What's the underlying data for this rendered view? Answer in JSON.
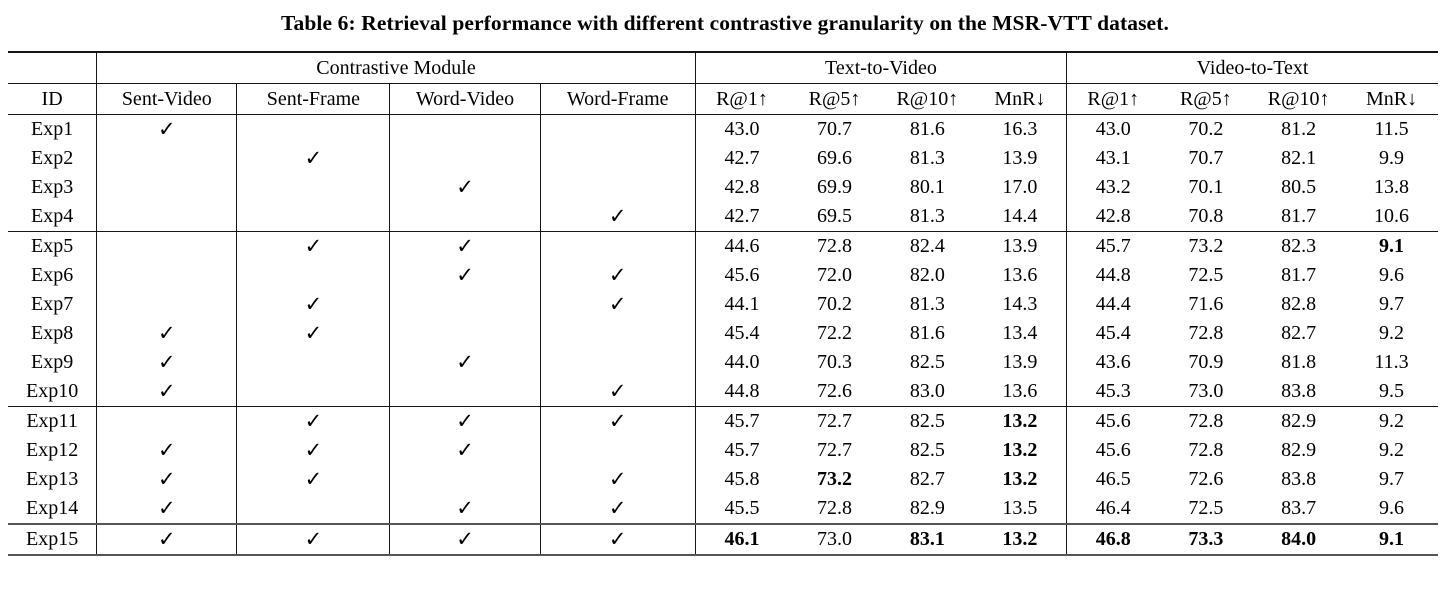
{
  "page": {
    "caption": "Table 6: Retrieval performance with different contrastive granularity on the MSR-VTT dataset."
  },
  "table": {
    "group_headers": [
      {
        "label": "",
        "span": 1
      },
      {
        "label": "Contrastive Module",
        "span": 4
      },
      {
        "label": "Text-to-Video",
        "span": 4
      },
      {
        "label": "Video-to-Text",
        "span": 4
      }
    ],
    "column_headers": [
      "ID",
      "Sent-Video",
      "Sent-Frame",
      "Word-Video",
      "Word-Frame",
      "R@1↑",
      "R@5↑",
      "R@10↑",
      "MnR↓",
      "R@1↑",
      "R@5↑",
      "R@10↑",
      "MnR↓"
    ],
    "checkmark_glyph": "✓",
    "rows": [
      {
        "id": "Exp1",
        "checks": [
          1,
          0,
          0,
          0
        ],
        "values": [
          "43.0",
          "70.7",
          "81.6",
          "16.3",
          "43.0",
          "70.2",
          "81.2",
          "11.5"
        ],
        "bold": [
          0,
          0,
          0,
          0,
          0,
          0,
          0,
          0
        ],
        "rule_above": null
      },
      {
        "id": "Exp2",
        "checks": [
          0,
          1,
          0,
          0
        ],
        "values": [
          "42.7",
          "69.6",
          "81.3",
          "13.9",
          "43.1",
          "70.7",
          "82.1",
          "9.9"
        ],
        "bold": [
          0,
          0,
          0,
          0,
          0,
          0,
          0,
          0
        ],
        "rule_above": null
      },
      {
        "id": "Exp3",
        "checks": [
          0,
          0,
          1,
          0
        ],
        "values": [
          "42.8",
          "69.9",
          "80.1",
          "17.0",
          "43.2",
          "70.1",
          "80.5",
          "13.8"
        ],
        "bold": [
          0,
          0,
          0,
          0,
          0,
          0,
          0,
          0
        ],
        "rule_above": null
      },
      {
        "id": "Exp4",
        "checks": [
          0,
          0,
          0,
          1
        ],
        "values": [
          "42.7",
          "69.5",
          "81.3",
          "14.4",
          "42.8",
          "70.8",
          "81.7",
          "10.6"
        ],
        "bold": [
          0,
          0,
          0,
          0,
          0,
          0,
          0,
          0
        ],
        "rule_above": null
      },
      {
        "id": "Exp5",
        "checks": [
          0,
          1,
          1,
          0
        ],
        "values": [
          "44.6",
          "72.8",
          "82.4",
          "13.9",
          "45.7",
          "73.2",
          "82.3",
          "9.1"
        ],
        "bold": [
          0,
          0,
          0,
          0,
          0,
          0,
          0,
          1
        ],
        "rule_above": "thin"
      },
      {
        "id": "Exp6",
        "checks": [
          0,
          0,
          1,
          1
        ],
        "values": [
          "45.6",
          "72.0",
          "82.0",
          "13.6",
          "44.8",
          "72.5",
          "81.7",
          "9.6"
        ],
        "bold": [
          0,
          0,
          0,
          0,
          0,
          0,
          0,
          0
        ],
        "rule_above": null
      },
      {
        "id": "Exp7",
        "checks": [
          0,
          1,
          0,
          1
        ],
        "values": [
          "44.1",
          "70.2",
          "81.3",
          "14.3",
          "44.4",
          "71.6",
          "82.8",
          "9.7"
        ],
        "bold": [
          0,
          0,
          0,
          0,
          0,
          0,
          0,
          0
        ],
        "rule_above": null
      },
      {
        "id": "Exp8",
        "checks": [
          1,
          1,
          0,
          0
        ],
        "values": [
          "45.4",
          "72.2",
          "81.6",
          "13.4",
          "45.4",
          "72.8",
          "82.7",
          "9.2"
        ],
        "bold": [
          0,
          0,
          0,
          0,
          0,
          0,
          0,
          0
        ],
        "rule_above": null
      },
      {
        "id": "Exp9",
        "checks": [
          1,
          0,
          1,
          0
        ],
        "values": [
          "44.0",
          "70.3",
          "82.5",
          "13.9",
          "43.6",
          "70.9",
          "81.8",
          "11.3"
        ],
        "bold": [
          0,
          0,
          0,
          0,
          0,
          0,
          0,
          0
        ],
        "rule_above": null
      },
      {
        "id": "Exp10",
        "checks": [
          1,
          0,
          0,
          1
        ],
        "values": [
          "44.8",
          "72.6",
          "83.0",
          "13.6",
          "45.3",
          "73.0",
          "83.8",
          "9.5"
        ],
        "bold": [
          0,
          0,
          0,
          0,
          0,
          0,
          0,
          0
        ],
        "rule_above": null
      },
      {
        "id": "Exp11",
        "checks": [
          0,
          1,
          1,
          1
        ],
        "values": [
          "45.7",
          "72.7",
          "82.5",
          "13.2",
          "45.6",
          "72.8",
          "82.9",
          "9.2"
        ],
        "bold": [
          0,
          0,
          0,
          1,
          0,
          0,
          0,
          0
        ],
        "rule_above": "thin"
      },
      {
        "id": "Exp12",
        "checks": [
          1,
          1,
          1,
          0
        ],
        "values": [
          "45.7",
          "72.7",
          "82.5",
          "13.2",
          "45.6",
          "72.8",
          "82.9",
          "9.2"
        ],
        "bold": [
          0,
          0,
          0,
          1,
          0,
          0,
          0,
          0
        ],
        "rule_above": null
      },
      {
        "id": "Exp13",
        "checks": [
          1,
          1,
          0,
          1
        ],
        "values": [
          "45.8",
          "73.2",
          "82.7",
          "13.2",
          "46.5",
          "72.6",
          "83.8",
          "9.7"
        ],
        "bold": [
          0,
          1,
          0,
          1,
          0,
          0,
          0,
          0
        ],
        "rule_above": null
      },
      {
        "id": "Exp14",
        "checks": [
          1,
          0,
          1,
          1
        ],
        "values": [
          "45.5",
          "72.8",
          "82.9",
          "13.5",
          "46.4",
          "72.5",
          "83.7",
          "9.6"
        ],
        "bold": [
          0,
          0,
          0,
          0,
          0,
          0,
          0,
          0
        ],
        "rule_above": null
      },
      {
        "id": "Exp15",
        "checks": [
          1,
          1,
          1,
          1
        ],
        "values": [
          "46.1",
          "73.0",
          "83.1",
          "13.2",
          "46.8",
          "73.3",
          "84.0",
          "9.1"
        ],
        "bold": [
          1,
          0,
          1,
          1,
          1,
          1,
          1,
          1
        ],
        "rule_above": "thick"
      }
    ],
    "value_column_keys": [
      "t2v-r1",
      "t2v-r5",
      "t2v-r10",
      "t2v-mnr",
      "v2t-r1",
      "v2t-r5",
      "v2t-r10",
      "v2t-mnr"
    ],
    "check_column_keys": [
      "sent-video",
      "sent-frame",
      "word-video",
      "word-frame"
    ]
  }
}
